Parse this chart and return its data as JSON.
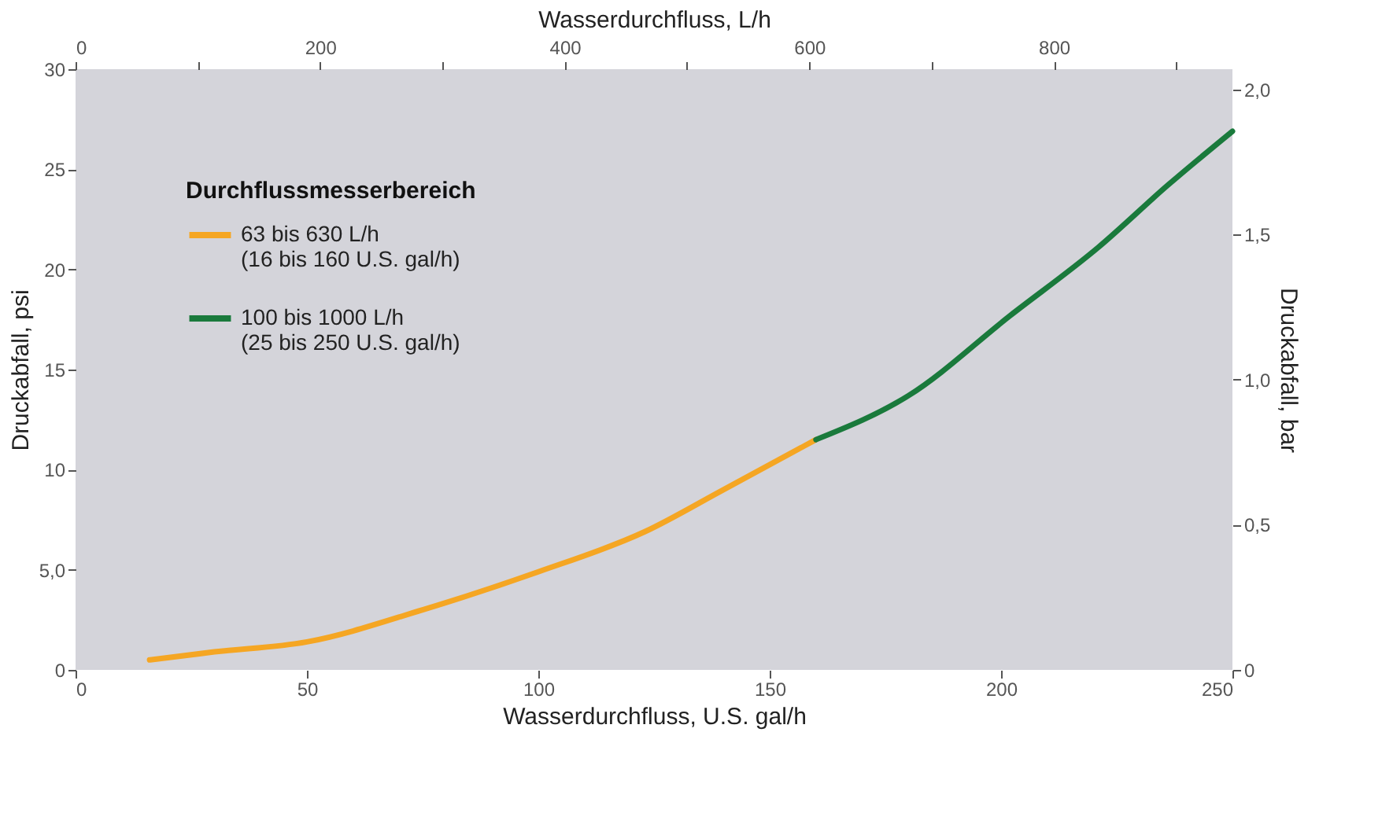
{
  "chart_data": {
    "type": "line",
    "xlabel": "Wasserdurchfluss, U.S. gal/h",
    "x2label": "Wasserdurchfluss, L/h",
    "ylabel": "Druckabfall, psi",
    "y2label": "Druckabfall, bar",
    "legend_title": "Durchflussmesserbereich",
    "xlim": [
      0,
      250
    ],
    "xticks": [
      0,
      50,
      100,
      150,
      200,
      250
    ],
    "x2lim": [
      0,
      946
    ],
    "x2ticks": [
      0,
      {
        "value": 100,
        "label": null
      },
      200,
      {
        "value": 300,
        "label": null
      },
      400,
      {
        "value": 500,
        "label": null
      },
      600,
      {
        "value": 700,
        "label": null
      },
      800,
      {
        "value": 900,
        "label": null
      }
    ],
    "ylim": [
      0,
      30
    ],
    "yticks": [
      0,
      {
        "value": 5,
        "label": "5,0"
      },
      10,
      15,
      20,
      25,
      30
    ],
    "y2lim": [
      0,
      2.07
    ],
    "y2ticks": [
      0,
      {
        "value": 0.5,
        "label": "0,5"
      },
      {
        "value": 1.0,
        "label": "1,0"
      },
      {
        "value": 1.5,
        "label": "1,5"
      },
      {
        "value": 2.0,
        "label": "2,0"
      }
    ],
    "series": [
      {
        "name": "63 bis 630 L/h\n(16 bis 160 U.S. gal/h)",
        "color": "#f5a623",
        "x": [
          16,
          30,
          50,
          75,
          100,
          123,
          140,
          160
        ],
        "values": [
          0.5,
          0.9,
          1.4,
          3.0,
          4.9,
          6.9,
          9.0,
          11.5
        ]
      },
      {
        "name": "100 bis 1000 L/h\n(25 bis 250 U.S. gal/h)",
        "color": "#1a7a3c",
        "x": [
          160,
          180,
          202,
          221,
          236,
          250
        ],
        "values": [
          11.5,
          13.7,
          17.7,
          21.1,
          24.2,
          26.9
        ]
      }
    ],
    "legend": "top left",
    "grid": false,
    "marker": "none",
    "line_style": "solid"
  }
}
